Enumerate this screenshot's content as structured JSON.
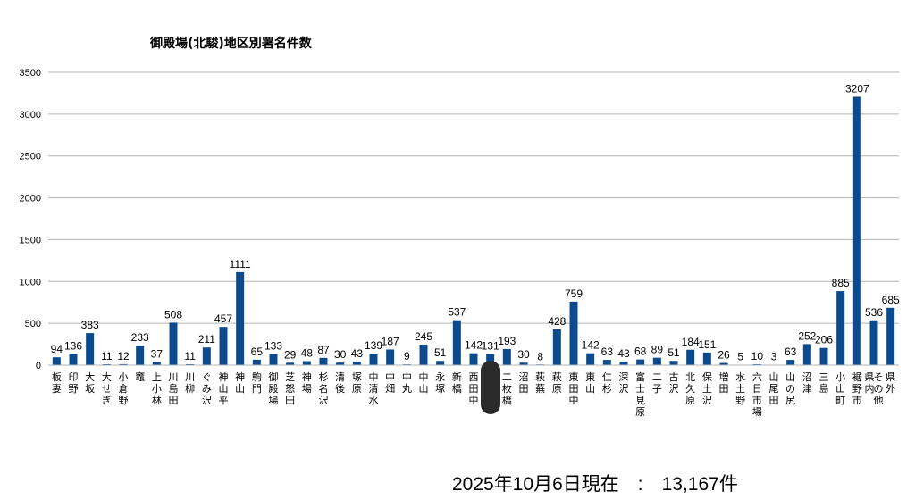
{
  "footer_text": "2025年10月6日現在　:　13,167件",
  "chart_data": {
    "type": "bar",
    "title": "御殿場(北駿)地区別署名件数",
    "xlabel": "",
    "ylabel": "",
    "ylim": [
      0,
      3500
    ],
    "yticks": [
      0,
      500,
      1000,
      1500,
      2000,
      2500,
      3000,
      3500
    ],
    "grid": true,
    "legend": "none",
    "bar_color": "#0b4a8c",
    "categories": [
      "板妻",
      "印野",
      "大坂",
      "大せぎ",
      "小倉野",
      "竈",
      "上小林",
      "川島田",
      "川柳",
      "ぐみ沢",
      "神山平",
      "神山",
      "駒門",
      "御殿場",
      "芝怒田",
      "神場",
      "杉名沢",
      "清後",
      "塚原",
      "中清水",
      "中畑",
      "中丸",
      "中山",
      "永塚",
      "新橋",
      "西田中",
      "",
      "二枚橋",
      "沼田",
      "萩蕪",
      "萩原",
      "東田中",
      "東山",
      "仁杉",
      "深沢",
      "富士見原",
      "二子",
      "古沢",
      "北久原",
      "保土沢",
      "増田",
      "水土野",
      "六日市場",
      "山尾田",
      "山の尻",
      "沼津",
      "三島",
      "小山町",
      "裾野市",
      "その他県内",
      "県外"
    ],
    "values": [
      94,
      136,
      383,
      11,
      12,
      233,
      37,
      508,
      11,
      211,
      457,
      1111,
      65,
      133,
      29,
      48,
      87,
      30,
      43,
      139,
      187,
      9,
      245,
      51,
      537,
      142,
      131,
      193,
      30,
      8,
      428,
      759,
      142,
      63,
      43,
      68,
      89,
      51,
      184,
      151,
      26,
      5,
      10,
      3,
      63,
      252,
      206,
      885,
      3207,
      536,
      685
    ]
  }
}
